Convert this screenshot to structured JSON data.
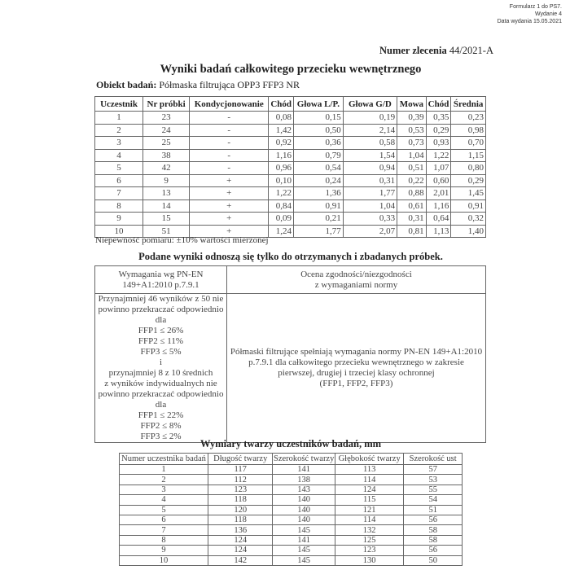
{
  "form_info": {
    "line1": "Formularz 1 do PS7.",
    "line2": "Wydanie 4",
    "line3": "Data wydania 15.05.2021"
  },
  "order": {
    "label": "Numer zlecenia",
    "value": "44/2021-A"
  },
  "title": "Wyniki badań całkowitego przecieku wewnętrznego",
  "object": {
    "label": "Obiekt badań:",
    "value": "Półmaska filtrująca OPP3 FFP3 NR"
  },
  "results_table": {
    "headers": [
      "Uczestnik",
      "Nr próbki",
      "Kondycjonowanie",
      "Chód",
      "Głowa L/P.",
      "Głowa G/D",
      "Mowa",
      "Chód",
      "Średnia"
    ],
    "rows": [
      [
        "1",
        "23",
        "-",
        "0,08",
        "0,15",
        "0,19",
        "0,39",
        "0,35",
        "0,23"
      ],
      [
        "2",
        "24",
        "-",
        "1,42",
        "0,50",
        "2,14",
        "0,53",
        "0,29",
        "0,98"
      ],
      [
        "3",
        "25",
        "-",
        "0,92",
        "0,36",
        "0,58",
        "0,73",
        "0,93",
        "0,70"
      ],
      [
        "4",
        "38",
        "-",
        "1,16",
        "0,79",
        "1,54",
        "1,04",
        "1,22",
        "1,15"
      ],
      [
        "5",
        "42",
        "-",
        "0,96",
        "0,54",
        "0,94",
        "0,51",
        "1,07",
        "0,80"
      ],
      [
        "6",
        "9",
        "+",
        "0,10",
        "0,24",
        "0,31",
        "0,22",
        "0,60",
        "0,29"
      ],
      [
        "7",
        "13",
        "+",
        "1,22",
        "1,36",
        "1,77",
        "0,88",
        "2,01",
        "1,45"
      ],
      [
        "8",
        "14",
        "+",
        "0,84",
        "0,91",
        "1,04",
        "0,61",
        "1,16",
        "0,91"
      ],
      [
        "9",
        "15",
        "+",
        "0,09",
        "0,21",
        "0,33",
        "0,31",
        "0,64",
        "0,32"
      ],
      [
        "10",
        "51",
        "+",
        "1,24",
        "1,77",
        "2,07",
        "0,81",
        "1,13",
        "1,40"
      ]
    ]
  },
  "uncertainty_note": "Niepewność pomiaru: ±10% wartości mierzonej",
  "scope_note": "Podane wyniki odnoszą się tylko do otrzymanych i zbadanych próbek.",
  "requirements_table": {
    "header_left": [
      "Wymagania wg PN-EN",
      "149+A1:2010 p.7.9.1"
    ],
    "header_right": [
      "Ocena zgodności/niezgodności",
      "z wymaganiami normy"
    ],
    "requirements": [
      "Przynajmniej 46 wyników z 50 nie",
      "powinno przekraczać odpowiednio",
      "dla",
      "FFP1 ≤ 26%",
      "FFP2 ≤ 11%",
      "FFP3 ≤ 5%",
      "i",
      "przynajmniej 8 z 10 średnich",
      "z wyników indywidualnych nie",
      "powinno przekraczać odpowiednio",
      "dla",
      "FFP1 ≤ 22%",
      "FFP2 ≤ 8%",
      "FFP3 ≤ 2%"
    ],
    "assessment": [
      "Półmaski filtrujące spełniają wymagania normy PN-EN 149+A1:2010",
      "p.7.9.1 dla całkowitego przecieku wewnętrznego w zakresie",
      "pierwszej, drugiej i trzeciej  klasy ochronnej",
      "(FFP1, FFP2, FFP3)"
    ]
  },
  "face_table": {
    "title": "Wymiary twarzy uczestników badań, mm",
    "headers": [
      "Numer uczestnika badań",
      "Długość twarzy",
      "Szerokość twarzy",
      "Głębokość twarzy",
      "Szerokość ust"
    ],
    "rows": [
      [
        "1",
        "117",
        "141",
        "113",
        "57"
      ],
      [
        "2",
        "112",
        "138",
        "114",
        "53"
      ],
      [
        "3",
        "123",
        "143",
        "124",
        "55"
      ],
      [
        "4",
        "118",
        "140",
        "115",
        "54"
      ],
      [
        "5",
        "120",
        "140",
        "121",
        "51"
      ],
      [
        "6",
        "118",
        "140",
        "114",
        "56"
      ],
      [
        "7",
        "136",
        "145",
        "132",
        "58"
      ],
      [
        "8",
        "124",
        "141",
        "125",
        "58"
      ],
      [
        "9",
        "124",
        "145",
        "123",
        "56"
      ],
      [
        "10",
        "142",
        "145",
        "130",
        "50"
      ]
    ]
  }
}
